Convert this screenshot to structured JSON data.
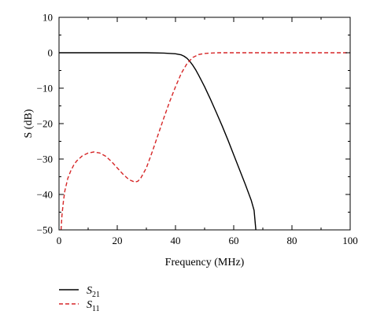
{
  "chart_data": {
    "type": "line",
    "title": "",
    "xlabel": "Frequency (MHz)",
    "ylabel": "S (dB)",
    "xlim": [
      0,
      100
    ],
    "ylim": [
      -50,
      10
    ],
    "xticks": [
      0,
      20,
      40,
      60,
      80,
      100
    ],
    "yticks": [
      10,
      0,
      -10,
      -20,
      -30,
      -40,
      -50
    ],
    "grid": false,
    "legend_position": "bottom-left",
    "series": [
      {
        "name": "S21",
        "name_main": "S",
        "name_sub": "21",
        "color": "#000000",
        "dash": "solid",
        "x": [
          0,
          10,
          20,
          30,
          36,
          40,
          42,
          43,
          44,
          45,
          46,
          47,
          48,
          50,
          52,
          54,
          56,
          58,
          60,
          62,
          64,
          66,
          67,
          67.6
        ],
        "y": [
          0,
          0,
          0,
          0,
          -0.1,
          -0.3,
          -0.6,
          -1.0,
          -1.6,
          -2.5,
          -3.6,
          -4.9,
          -6.4,
          -9.6,
          -13.1,
          -16.8,
          -20.6,
          -24.6,
          -28.8,
          -33.0,
          -37.2,
          -41.6,
          -44.5,
          -50
        ]
      },
      {
        "name": "S11",
        "name_main": "S",
        "name_sub": "11",
        "color": "#d62728",
        "dash": "dashed",
        "x": [
          0.7,
          1,
          1.5,
          2,
          3,
          4,
          5,
          6,
          8,
          10,
          12,
          14,
          16,
          18,
          20,
          22,
          24,
          26,
          27,
          28,
          30,
          32,
          34,
          36,
          38,
          40,
          42,
          44,
          46,
          48,
          50,
          52,
          55,
          60,
          70,
          80,
          90,
          100
        ],
        "y": [
          -50,
          -46,
          -42,
          -39,
          -35.5,
          -33.4,
          -31.8,
          -30.6,
          -29.1,
          -28.3,
          -28.0,
          -28.3,
          -29.2,
          -30.7,
          -32.5,
          -34.3,
          -35.8,
          -36.5,
          -36.3,
          -35.5,
          -32.5,
          -28.0,
          -23.2,
          -18.4,
          -13.8,
          -9.6,
          -5.8,
          -3.0,
          -1.3,
          -0.5,
          -0.2,
          -0.1,
          0,
          0,
          0,
          0,
          0,
          0
        ]
      }
    ]
  }
}
